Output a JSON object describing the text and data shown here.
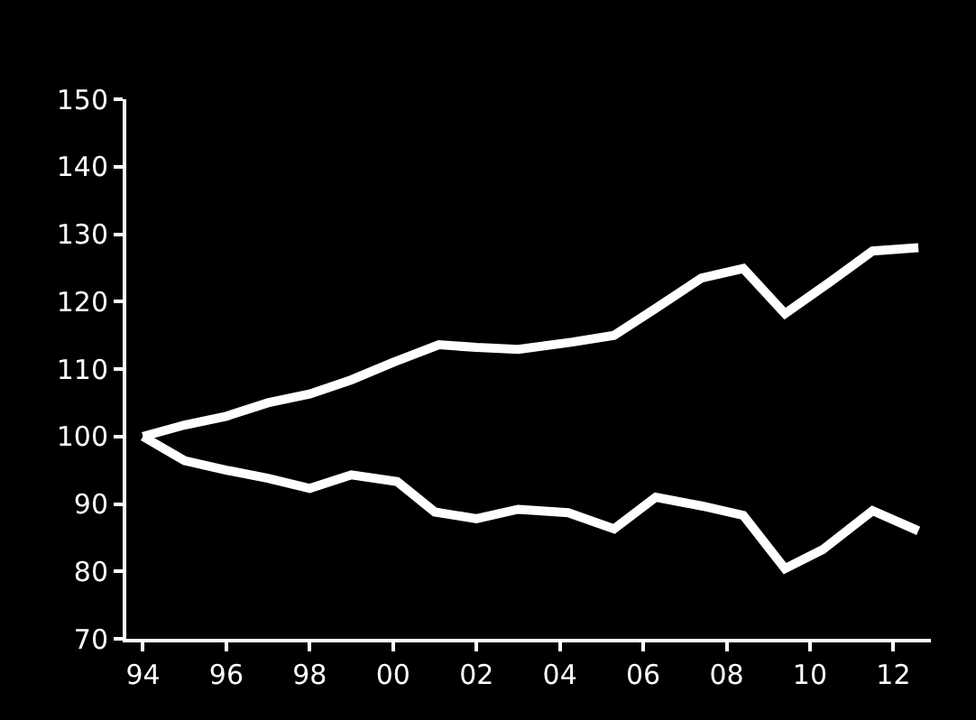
{
  "chart_data": {
    "type": "line",
    "xlim": [
      1993.6,
      2012.9
    ],
    "ylim": [
      70,
      150
    ],
    "yticks": [
      70,
      80,
      90,
      100,
      110,
      120,
      130,
      140,
      150
    ],
    "xticks": [
      {
        "value": 1994,
        "label": "94"
      },
      {
        "value": 1996,
        "label": "96"
      },
      {
        "value": 1998,
        "label": "98"
      },
      {
        "value": 2000,
        "label": "00"
      },
      {
        "value": 2002,
        "label": "02"
      },
      {
        "value": 2004,
        "label": "04"
      },
      {
        "value": 2006,
        "label": "06"
      },
      {
        "value": 2008,
        "label": "08"
      },
      {
        "value": 2010,
        "label": "10"
      },
      {
        "value": 2012,
        "label": "12"
      }
    ],
    "grid": false,
    "marker": "none",
    "line_style": "solid",
    "series": [
      {
        "color": "#ffffff",
        "x": [
          1994,
          1995,
          1996,
          1997,
          1998,
          1999,
          2000,
          2001.1,
          2002,
          2003,
          2004.3,
          2005.3,
          2006.3,
          2007.4,
          2008.4,
          2009.4,
          2010.5,
          2011.5,
          2012.6
        ],
        "values": [
          100,
          101.7,
          103,
          105,
          106.3,
          108.4,
          111,
          113.6,
          113.2,
          112.9,
          114,
          115,
          119,
          123.5,
          124.9,
          118.2,
          123,
          127.5,
          128
        ]
      },
      {
        "color": "#ffffff",
        "x": [
          1994,
          1995,
          1996,
          1997,
          1998,
          1999,
          2000.1,
          2001,
          2002,
          2003,
          2004.2,
          2005.3,
          2006.3,
          2007.4,
          2008.4,
          2009.4,
          2010.3,
          2011.5,
          2012.6
        ],
        "values": [
          100,
          96.4,
          95,
          93.8,
          92.3,
          94.3,
          93.3,
          88.8,
          87.8,
          89.2,
          88.7,
          86.3,
          91,
          89.7,
          88.3,
          80.4,
          83.2,
          89,
          86
        ]
      }
    ]
  }
}
